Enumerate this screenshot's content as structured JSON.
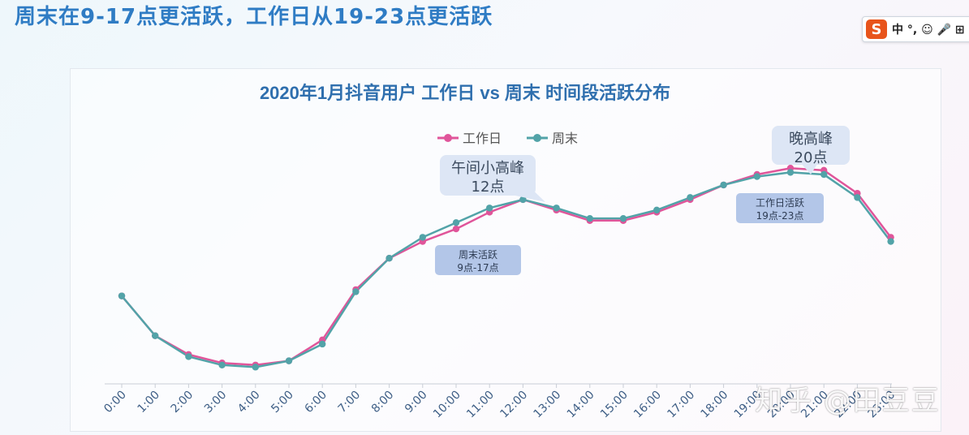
{
  "headline": "周末在9-17点更活跃，工作日从19-23点更活跃",
  "ime_toolbar": {
    "logo": "S",
    "text": "中 °, ☺ 🎤 ⊞"
  },
  "watermark": "知乎 @田豆豆",
  "colors": {
    "workday": "#e0559a",
    "weekend": "#52a3a8",
    "title": "#2f6fae",
    "callout_bg": "#dde6f5",
    "label_bg": "#b3c6e8"
  },
  "annotations": {
    "noon_peak": "午间小高峰",
    "noon_peak_time": "12点",
    "evening_peak": "晚高峰",
    "evening_peak_time": "20点",
    "weekend_active": "周末活跃",
    "weekend_active_range": "9点-17点",
    "workday_active": "工作日活跃",
    "workday_active_range": "19点-23点"
  },
  "chart_data": {
    "type": "line",
    "title": "2020年1月抖音用户 工作日 vs 周末 时间段活跃分布",
    "xlabel": "",
    "ylabel": "",
    "legend_position": "top-center",
    "grid": false,
    "x": [
      "0:00",
      "1:00",
      "2:00",
      "3:00",
      "4:00",
      "5:00",
      "6:00",
      "7:00",
      "8:00",
      "9:00",
      "10:00",
      "11:00",
      "12:00",
      "13:00",
      "14:00",
      "15:00",
      "16:00",
      "17:00",
      "18:00",
      "19:00",
      "20:00",
      "21:00",
      "22:00",
      "23:00"
    ],
    "ylim": [
      0,
      100
    ],
    "series": [
      {
        "name": "工作日",
        "values": [
          42,
          23,
          14,
          10,
          9,
          11,
          21,
          45,
          60,
          68,
          74,
          82,
          88,
          83,
          78,
          78,
          82,
          88,
          95,
          100,
          103,
          102,
          91,
          70
        ]
      },
      {
        "name": "周末",
        "values": [
          42,
          23,
          13,
          9,
          8,
          11,
          19,
          44,
          60,
          70,
          77,
          84,
          88,
          84,
          79,
          79,
          83,
          89,
          95,
          99,
          101,
          100,
          89,
          68
        ]
      }
    ]
  }
}
